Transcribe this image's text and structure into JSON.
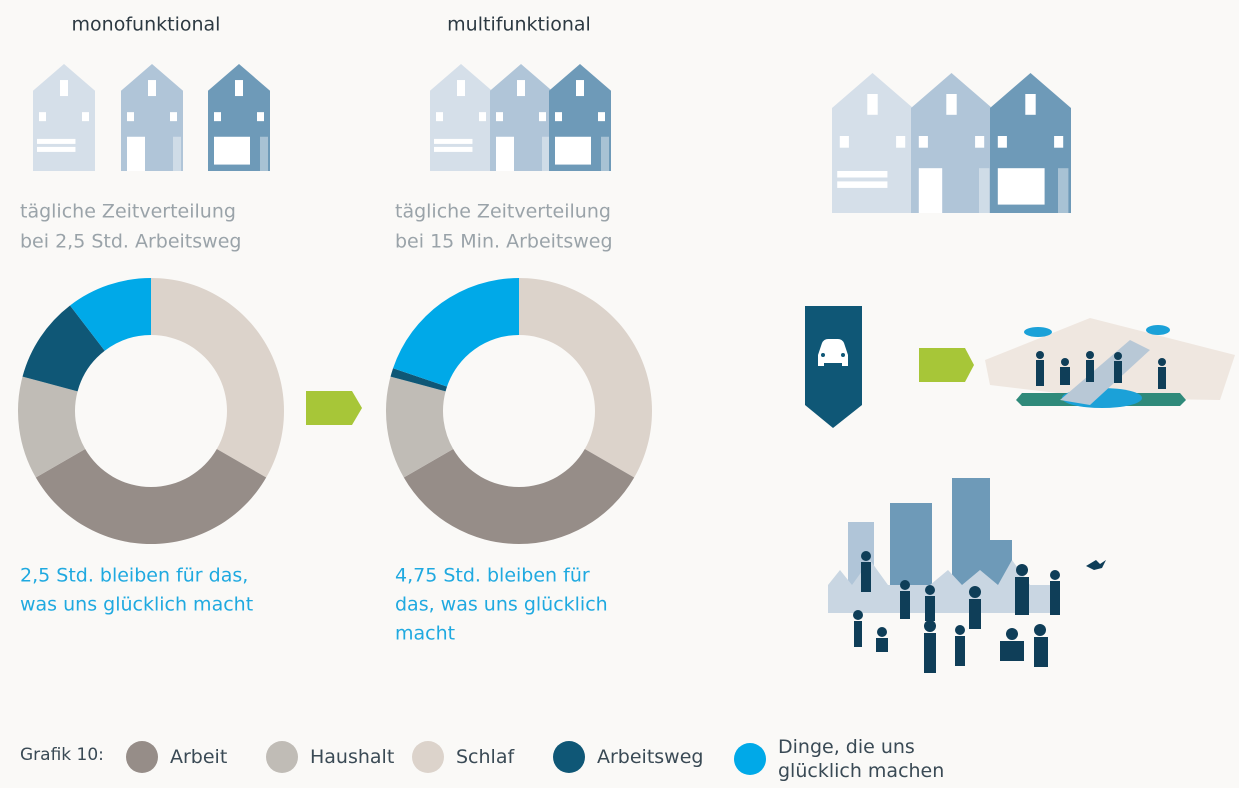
{
  "chart_data": [
    {
      "type": "pie",
      "title": "monofunktional",
      "subtitle": [
        "tägliche Zeitverteilung",
        "bei 2,5 Std. Arbeitsweg"
      ],
      "categories": [
        "Schlaf",
        "Arbeit",
        "Haushalt",
        "Arbeitsweg",
        "Dinge, die uns glücklich machen"
      ],
      "colors": [
        "#dcd3cb",
        "#968d88",
        "#c0bcb6",
        "#0f5776",
        "#00a9e8"
      ],
      "values": [
        8,
        8,
        3,
        2.5,
        2.5
      ],
      "annotation": [
        "2,5 Std. bleiben für das,",
        "was uns glücklich macht"
      ]
    },
    {
      "type": "pie",
      "title": "multifunktional",
      "subtitle": [
        "tägliche Zeitverteilung",
        "bei 15 Min. Arbeitsweg"
      ],
      "categories": [
        "Schlaf",
        "Arbeit",
        "Haushalt",
        "Arbeitsweg",
        "Dinge, die uns glücklich machen"
      ],
      "colors": [
        "#dcd3cb",
        "#968d88",
        "#c0bcb6",
        "#0f5776",
        "#00a9e8"
      ],
      "values": [
        8,
        8,
        3,
        0.25,
        4.75
      ],
      "annotation": [
        "4,75 Std. bleiben für",
        "das, was uns glücklich",
        "macht"
      ]
    }
  ],
  "legend": {
    "label": "Grafik 10:",
    "order": [
      1,
      2,
      0,
      3,
      4
    ]
  }
}
